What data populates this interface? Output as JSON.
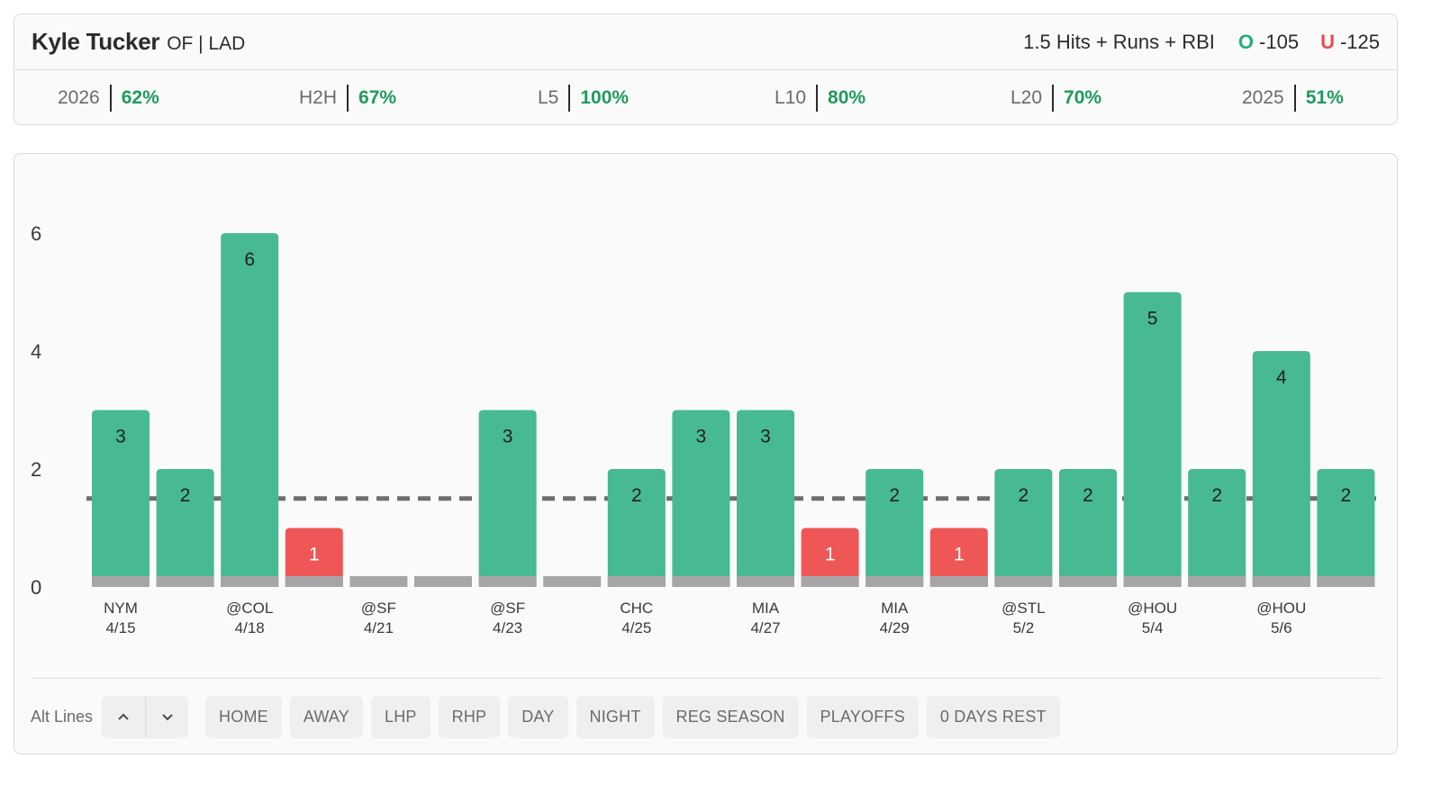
{
  "header": {
    "player_name": "Kyle Tucker",
    "player_meta": "OF | LAD",
    "prop_line": "1.5 Hits + Runs + RBI",
    "over": {
      "letter": "O",
      "odds": "-105"
    },
    "under": {
      "letter": "U",
      "odds": "-125"
    }
  },
  "stats": [
    {
      "label": "2026",
      "value": "62%"
    },
    {
      "label": "H2H",
      "value": "67%"
    },
    {
      "label": "L5",
      "value": "100%"
    },
    {
      "label": "L10",
      "value": "80%"
    },
    {
      "label": "L20",
      "value": "70%"
    },
    {
      "label": "2025",
      "value": "51%"
    }
  ],
  "chart_data": {
    "type": "bar",
    "line": 1.5,
    "ylim": [
      0,
      6
    ],
    "yticks": [
      "0",
      "2",
      "4",
      "6"
    ],
    "games": [
      {
        "opp": "NYM",
        "date": "4/15",
        "value": 3
      },
      {
        "opp": "",
        "date": "",
        "value": 2
      },
      {
        "opp": "@COL",
        "date": "4/18",
        "value": 6
      },
      {
        "opp": "",
        "date": "",
        "value": 1
      },
      {
        "opp": "@SF",
        "date": "4/21",
        "value": 0
      },
      {
        "opp": "",
        "date": "",
        "value": 0
      },
      {
        "opp": "@SF",
        "date": "4/23",
        "value": 3
      },
      {
        "opp": "",
        "date": "",
        "value": 0
      },
      {
        "opp": "CHC",
        "date": "4/25",
        "value": 2
      },
      {
        "opp": "",
        "date": "",
        "value": 3
      },
      {
        "opp": "MIA",
        "date": "4/27",
        "value": 3
      },
      {
        "opp": "",
        "date": "",
        "value": 1
      },
      {
        "opp": "MIA",
        "date": "4/29",
        "value": 2
      },
      {
        "opp": "",
        "date": "",
        "value": 1
      },
      {
        "opp": "@STL",
        "date": "5/2",
        "value": 2
      },
      {
        "opp": "",
        "date": "",
        "value": 2
      },
      {
        "opp": "@HOU",
        "date": "5/4",
        "value": 5
      },
      {
        "opp": "",
        "date": "",
        "value": 2
      },
      {
        "opp": "@HOU",
        "date": "5/6",
        "value": 4
      },
      {
        "opp": "",
        "date": "",
        "value": 2
      }
    ],
    "colors": {
      "over": "#47b993",
      "under": "#ef5757",
      "base": "#a6a6a6",
      "line": "#6e6e6e"
    }
  },
  "controls": {
    "alt_lines_label": "Alt Lines",
    "up_icon": "chevron-up-icon",
    "down_icon": "chevron-down-icon",
    "filters": [
      "HOME",
      "AWAY",
      "LHP",
      "RHP",
      "DAY",
      "NIGHT",
      "REG SEASON",
      "PLAYOFFS",
      "0 DAYS REST"
    ]
  }
}
